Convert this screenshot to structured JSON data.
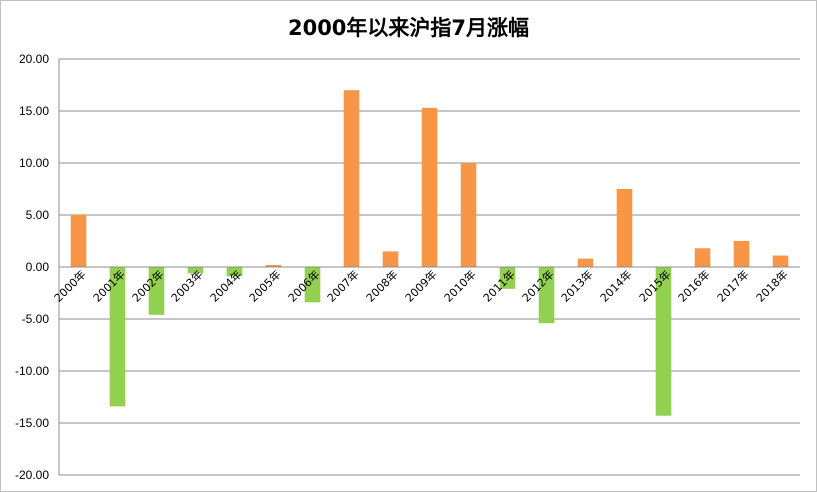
{
  "chart_data": {
    "type": "bar",
    "title": "2000年以来沪指7月涨幅",
    "xlabel": "",
    "ylabel": "",
    "ylim": [
      -20,
      20
    ],
    "yticks": [
      "20.00",
      "15.00",
      "10.00",
      "5.00",
      "0.00",
      "-5.00",
      "-10.00",
      "-15.00",
      "-20.00"
    ],
    "ytick_values": [
      20,
      15,
      10,
      5,
      0,
      -5,
      -10,
      -15,
      -20
    ],
    "grid": true,
    "legend": "none",
    "positive_color": "#F79646",
    "negative_color": "#92D050",
    "categories": [
      "2000年",
      "2001年",
      "2002年",
      "2003年",
      "2004年",
      "2005年",
      "2006年",
      "2007年",
      "2008年",
      "2009年",
      "2010年",
      "2011年",
      "2012年",
      "2013年",
      "2014年",
      "2015年",
      "2016年",
      "2017年",
      "2018年"
    ],
    "values": [
      5.0,
      -13.4,
      -4.6,
      -0.6,
      -0.9,
      0.2,
      -3.4,
      17.0,
      1.5,
      15.3,
      10.0,
      -2.1,
      -5.4,
      0.8,
      7.5,
      -14.3,
      1.8,
      2.5,
      1.1
    ]
  }
}
